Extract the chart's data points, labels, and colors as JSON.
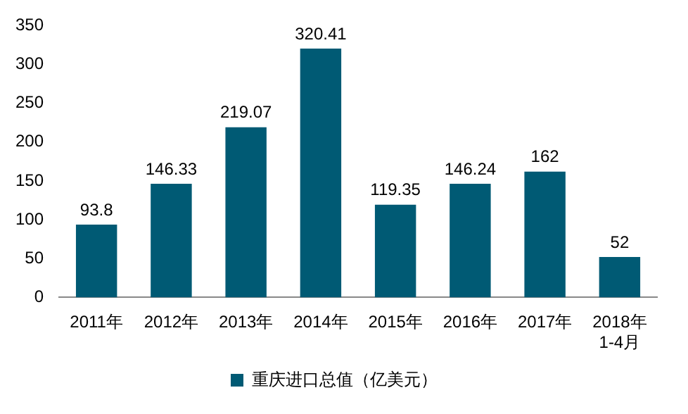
{
  "chart_data": {
    "type": "bar",
    "categories": [
      "2011年",
      "2012年",
      "2013年",
      "2014年",
      "2015年",
      "2016年",
      "2017年",
      "2018年\n1-4月"
    ],
    "series": [
      {
        "name": "重庆进口总值（亿美元）",
        "color": "#005a74",
        "values": [
          93.8,
          146.33,
          219.07,
          320.41,
          119.35,
          146.24,
          162,
          52
        ]
      }
    ],
    "ylim": [
      0,
      350
    ],
    "yticks": [
      0,
      50,
      100,
      150,
      200,
      250,
      300,
      350
    ],
    "grid": false,
    "legend": "bottom",
    "data_labels": true
  }
}
